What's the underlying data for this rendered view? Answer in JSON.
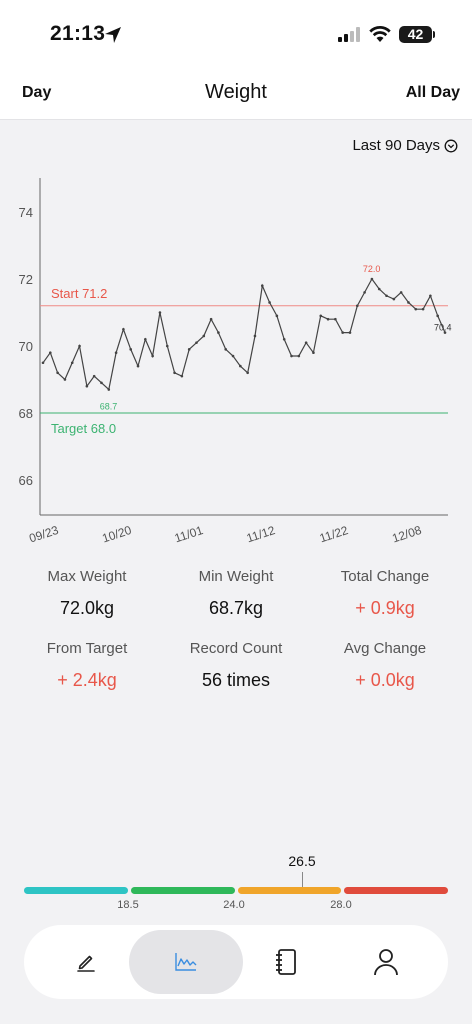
{
  "status": {
    "time": "21:13",
    "battery": "42"
  },
  "header": {
    "left": "Day",
    "title": "Weight",
    "right": "All Day"
  },
  "range": {
    "label": "Last 90 Days"
  },
  "chart_data": {
    "type": "line",
    "y_ticks": [
      "74",
      "72",
      "70",
      "68",
      "66"
    ],
    "ylim": [
      65,
      75
    ],
    "x_ticks": [
      "09/23",
      "10/20",
      "11/01",
      "11/12",
      "11/22",
      "12/08"
    ],
    "series": [
      {
        "values": [
          69.5,
          69.8,
          69.2,
          69.0,
          69.5,
          70.0,
          68.8,
          69.1,
          68.9,
          68.7,
          69.8,
          70.5,
          69.9,
          69.4,
          70.2,
          69.7,
          71.0,
          70.0,
          69.2,
          69.1,
          69.9,
          70.1,
          70.3,
          70.8,
          70.4,
          69.9,
          69.7,
          69.4,
          69.2,
          70.3,
          71.8,
          71.3,
          70.9,
          70.2,
          69.7,
          69.7,
          70.1,
          69.8,
          70.9,
          70.8,
          70.8,
          70.4,
          70.4,
          71.2,
          71.6,
          72.0,
          71.7,
          71.5,
          71.4,
          71.6,
          71.3,
          71.1,
          71.1,
          71.5,
          70.9,
          70.4
        ]
      }
    ],
    "start": {
      "label": "Start 71.2",
      "value": 71.2,
      "color": "#f08a85"
    },
    "target": {
      "label": "Target 68.0",
      "value": 68.0,
      "color": "#3cb371"
    },
    "annotations": {
      "max": "72.0",
      "min": "68.7",
      "last": "70.4"
    }
  },
  "stats": [
    {
      "label": "Max Weight",
      "value": "72.0kg",
      "red": false
    },
    {
      "label": "Min Weight",
      "value": "68.7kg",
      "red": false
    },
    {
      "label": "Total Change",
      "value": "+ 0.9kg",
      "red": true
    },
    {
      "label": "From Target",
      "value": "+ 2.4kg",
      "red": true
    },
    {
      "label": "Record Count",
      "value": "56 times",
      "red": false
    },
    {
      "label": "Avg Change",
      "value": "+ 0.0kg",
      "red": true
    }
  ],
  "bmi": {
    "value": "26.5",
    "ticks": [
      "18.5",
      "24.0",
      "28.0"
    ],
    "colors": [
      "#2ec4c4",
      "#2fb85a",
      "#f0a52a",
      "#e04b3c"
    ]
  },
  "tabs": [
    {
      "icon": "pencil-icon"
    },
    {
      "icon": "chart-icon",
      "active": true
    },
    {
      "icon": "notebook-icon"
    },
    {
      "icon": "person-icon"
    }
  ]
}
